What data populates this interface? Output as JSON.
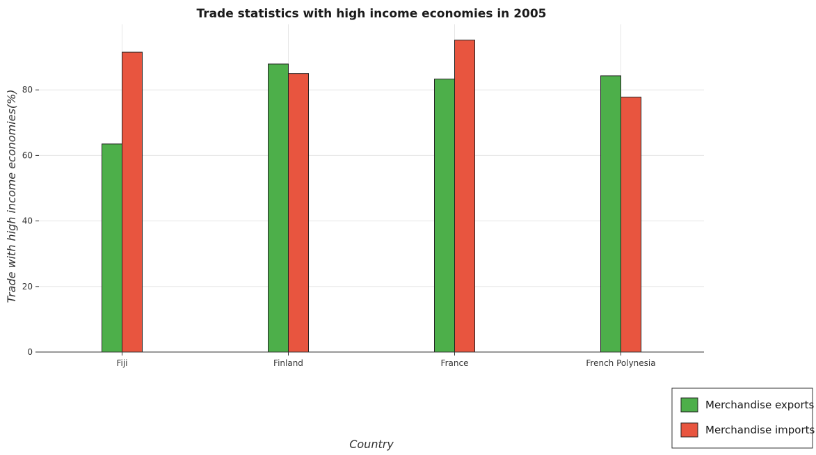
{
  "chart_data": {
    "type": "bar",
    "title": "Trade statistics with high income economies in 2005",
    "xlabel": "Country",
    "ylabel": "Trade with high income economies(%)",
    "categories": [
      "Fiji",
      "Finland",
      "France",
      "French Polynesia"
    ],
    "series": [
      {
        "name": "Merchandise exports",
        "color": "#4daf4a",
        "values": [
          63.5,
          87.9,
          83.3,
          84.3
        ]
      },
      {
        "name": "Merchandise imports",
        "color": "#e8553f",
        "values": [
          91.5,
          85.0,
          95.2,
          77.8
        ]
      }
    ],
    "ylim": [
      0,
      100
    ],
    "yticks": [
      0,
      20,
      40,
      60,
      80
    ],
    "grid": true,
    "legend_position": "bottom-right"
  }
}
